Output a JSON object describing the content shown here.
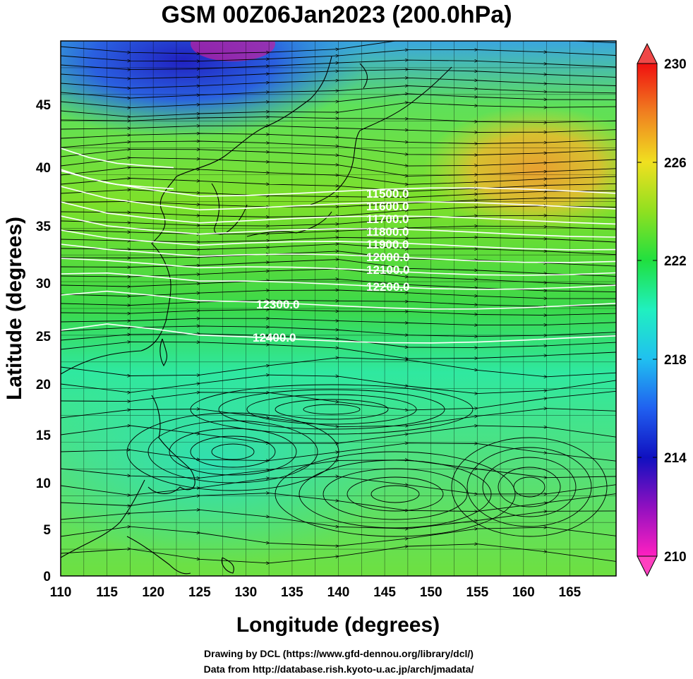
{
  "title": "GSM 00Z06Jan2023 (200.0hPa)",
  "xlabel": "Longitude (degrees)",
  "ylabel": "Latitude  (degrees)",
  "x_ticks": [
    "110",
    "115",
    "120",
    "125",
    "130",
    "135",
    "140",
    "145",
    "150",
    "155",
    "160",
    "165"
  ],
  "y_ticks": [
    "0",
    "5",
    "10",
    "15",
    "20",
    "25",
    "30",
    "35",
    "40",
    "45"
  ],
  "colorbar": {
    "ticks": [
      "210",
      "214",
      "218",
      "222",
      "226",
      "230"
    ],
    "min": 210,
    "max": 230
  },
  "contour_labels": [
    "11500.0",
    "11600.0",
    "11700.0",
    "11800.0",
    "11900.0",
    "12000.0",
    "12100.0",
    "12200.0",
    "12300.0",
    "12400.0"
  ],
  "credits": [
    "Drawing by DCL (https://www.gfd-dennou.org/library/dcl/)",
    "Data from http://database.rish.kyoto-u.ac.jp/arch/jmadata/"
  ],
  "chart_data": {
    "type": "heatmap",
    "title": "GSM 00Z06Jan2023 (200.0hPa)",
    "xlabel": "Longitude (degrees)",
    "ylabel": "Latitude  (degrees)",
    "xlim": [
      110,
      170
    ],
    "ylim": [
      0,
      50
    ],
    "color_range": [
      210,
      230
    ],
    "colorbar_ticks": [
      210,
      214,
      218,
      222,
      226,
      230
    ],
    "contours": [
      11500,
      11600,
      11700,
      11800,
      11900,
      12000,
      12100,
      12200,
      12300,
      12400
    ]
  }
}
